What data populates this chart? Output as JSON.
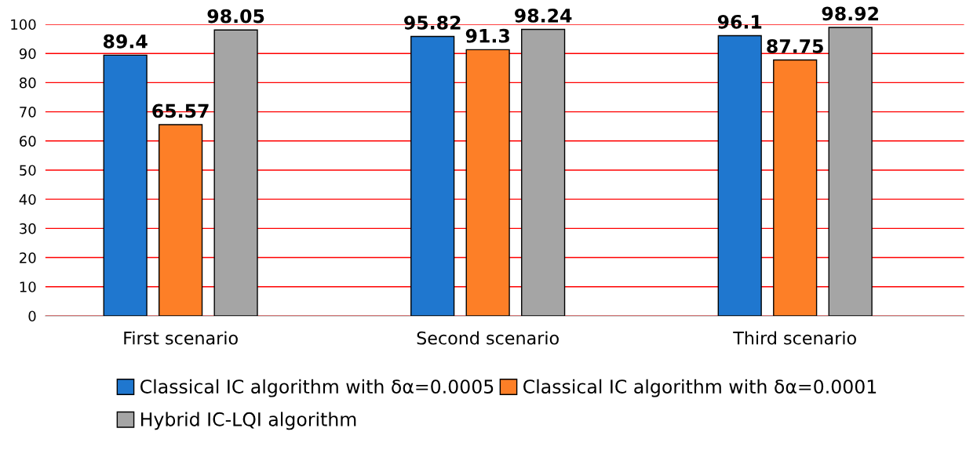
{
  "chart_data": {
    "type": "bar",
    "categories": [
      "First scenario",
      "Second scenario",
      "Third scenario"
    ],
    "series": [
      {
        "name": "Classical IC algorithm with δα=0.0005",
        "color": "#1f77cf",
        "values": [
          89.4,
          95.82,
          96.1
        ]
      },
      {
        "name": "Classical IC algorithm with δα=0.0001",
        "color": "#fd7f27",
        "values": [
          65.57,
          91.3,
          87.75
        ]
      },
      {
        "name": "Hybrid IC-LQI algorithm",
        "color": "#a5a5a5",
        "values": [
          98.05,
          98.24,
          98.92
        ]
      }
    ],
    "ylim": [
      0,
      100
    ],
    "yticks": [
      0,
      10,
      20,
      30,
      40,
      50,
      60,
      70,
      80,
      90,
      100
    ],
    "grid": "y",
    "legend": "bottom",
    "data_labels": true
  }
}
